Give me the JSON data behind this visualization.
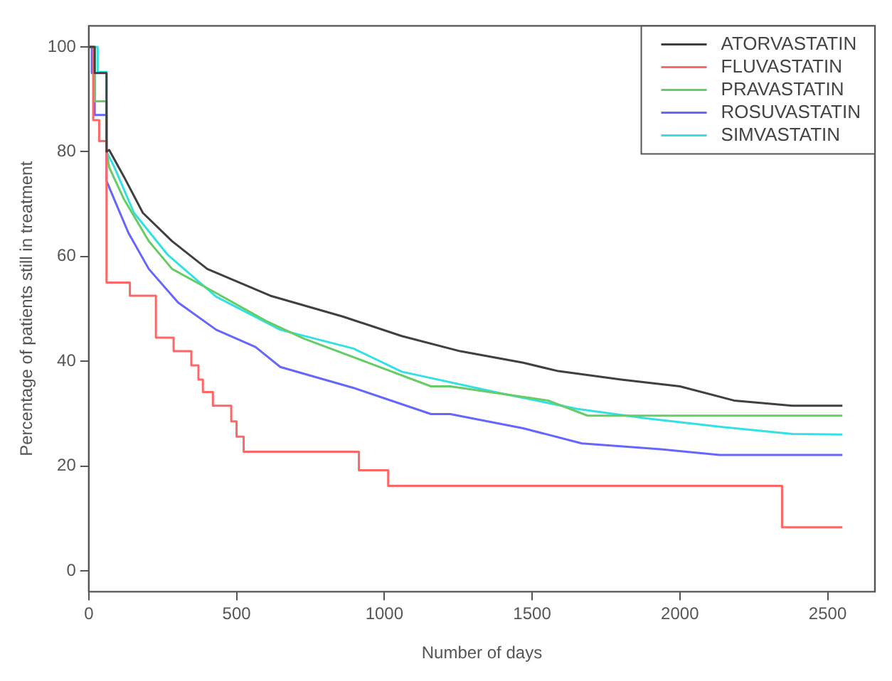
{
  "chart_data": {
    "type": "step",
    "xlabel": "Number of days",
    "ylabel": "Percentage of patients still in treatment",
    "xlim": [
      0,
      2660
    ],
    "ylim": [
      -4,
      104
    ],
    "xticks": [
      0,
      500,
      1000,
      1500,
      2000,
      2500
    ],
    "yticks": [
      0,
      20,
      40,
      60,
      80,
      100
    ],
    "grid": false,
    "legend": "top right",
    "series": [
      {
        "name": "ATORVASTATIN",
        "type": "line",
        "color": "#404040",
        "x": [
          0,
          20,
          20,
          60,
          60,
          69,
          119,
          183,
          282,
          401,
          614,
          861,
          1059,
          1257,
          1470,
          1589,
          1802,
          2000,
          2183,
          2381,
          2550
        ],
        "values": [
          100,
          100,
          95,
          95,
          80,
          80.3,
          75.2,
          68.3,
          62.9,
          57.6,
          52.5,
          48.5,
          44.8,
          41.9,
          39.7,
          38.1,
          36.5,
          35.2,
          32.5,
          31.5,
          31.5
        ]
      },
      {
        "name": "FLUVASTATIN",
        "color": "#ff6666",
        "x": [
          0,
          15,
          35,
          60,
          139,
          227,
          287,
          347,
          371,
          386,
          420,
          482,
          500,
          524,
          914,
          1013,
          2346,
          2550
        ],
        "values": [
          100,
          86,
          82,
          55,
          52.5,
          44.5,
          41.9,
          39.2,
          36.5,
          34.1,
          31.5,
          28.5,
          25.6,
          22.7,
          19.2,
          16.2,
          8.3,
          8.3
        ]
      },
      {
        "name": "PRAVASTATIN",
        "type": "line",
        "color": "#66cc66",
        "x": [
          0,
          20,
          20,
          60,
          60,
          69,
          119,
          203,
          282,
          431,
          599,
          728,
          946,
          1158,
          1223,
          1554,
          1688,
          2550
        ],
        "values": [
          100,
          100,
          89.6,
          89.6,
          80,
          77,
          70.9,
          62.9,
          57.6,
          53,
          47.7,
          44.3,
          39.7,
          35.2,
          35.2,
          32.5,
          29.6,
          29.6
        ]
      },
      {
        "name": "ROSUVASTATIN",
        "type": "line",
        "color": "#6666ff",
        "x": [
          0,
          10,
          10,
          20,
          20,
          60,
          60,
          86,
          134,
          203,
          302,
          431,
          564,
          648,
          896,
          1158,
          1223,
          1470,
          1668,
          1936,
          2134,
          2550
        ],
        "values": [
          100,
          100,
          95,
          95,
          87,
          87,
          74.4,
          70.9,
          64.5,
          57.6,
          51.2,
          46,
          42.7,
          38.9,
          34.9,
          29.9,
          29.9,
          27.2,
          24.3,
          23.2,
          22.1,
          22.1
        ]
      },
      {
        "name": "SIMVASTATIN",
        "type": "line",
        "color": "#33e0e6",
        "x": [
          0,
          30,
          30,
          60,
          60,
          86,
          153,
          267,
          431,
          648,
          896,
          1059,
          1391,
          1653,
          1886,
          2134,
          2381,
          2550
        ],
        "values": [
          100,
          100,
          95.2,
          95.2,
          80,
          77.1,
          68.3,
          60.3,
          52.3,
          46,
          42.4,
          38,
          33.9,
          30.9,
          29.1,
          27.5,
          26.1,
          26
        ]
      }
    ]
  }
}
